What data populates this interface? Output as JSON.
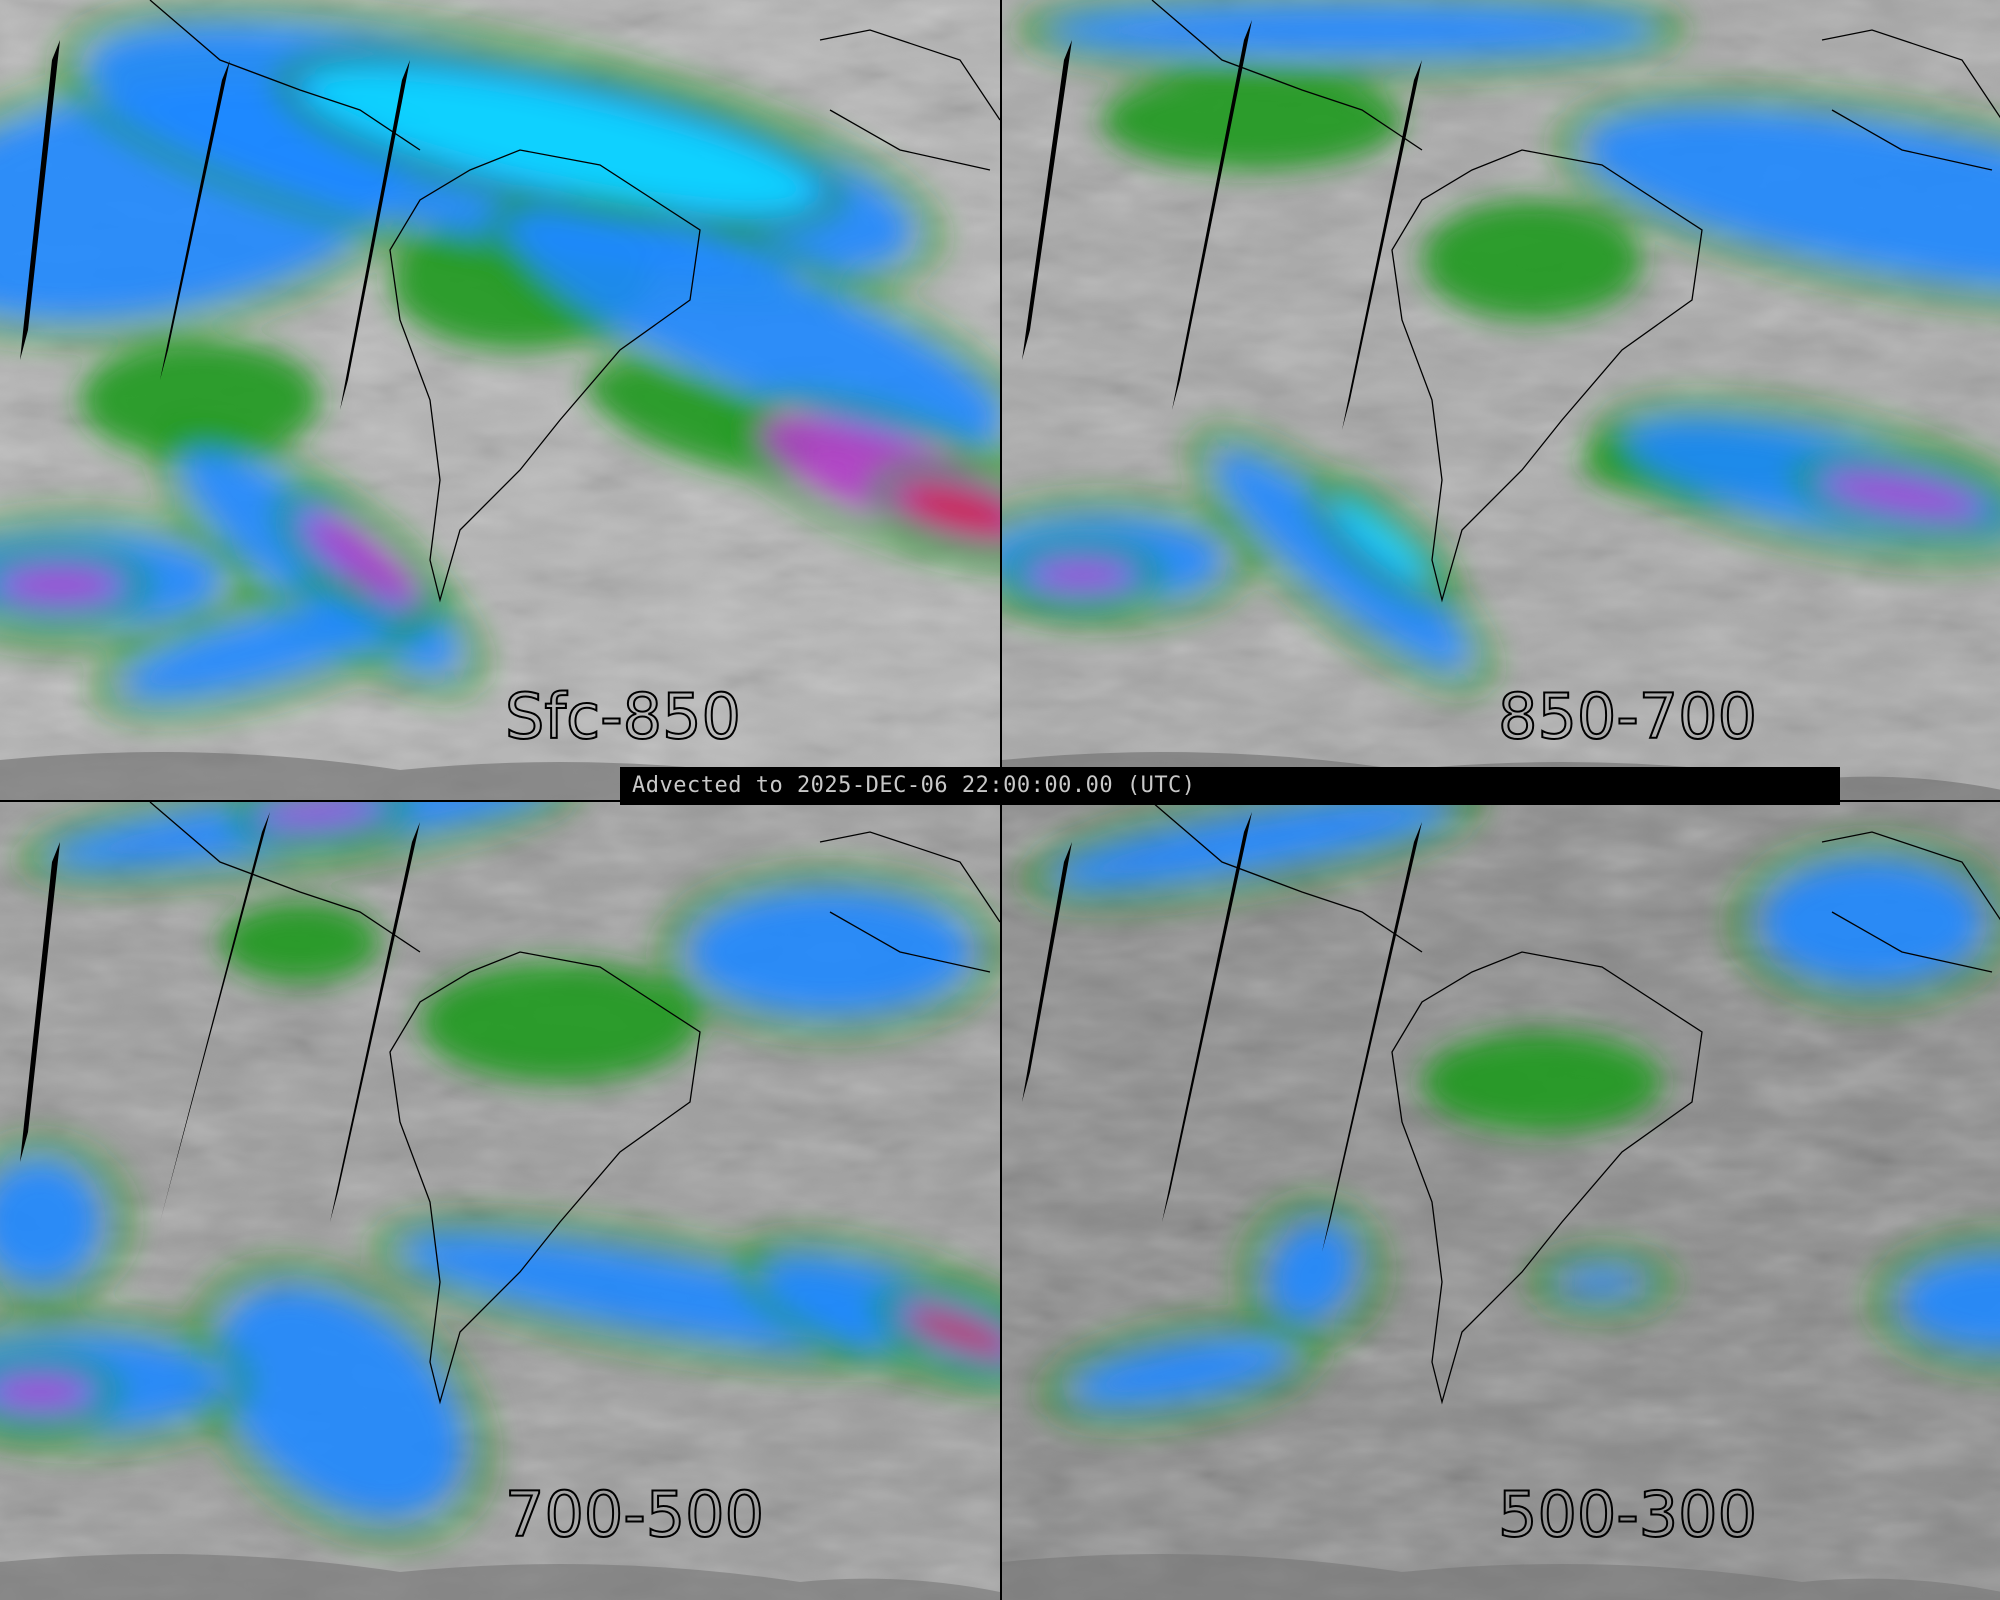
{
  "banner": {
    "text": "Advected to 2025-DEC-06 22:00:00.00 (UTC)"
  },
  "panels": [
    {
      "label": "Sfc-850"
    },
    {
      "label": "850-700"
    },
    {
      "label": "700-500"
    },
    {
      "label": "500-300"
    }
  ],
  "colors": {
    "background_gray": "#a8a8a8",
    "green": "#1f9a1f",
    "blue": "#1e88ff",
    "cyan": "#10d8ff",
    "magenta": "#b03cc8",
    "red": "#d02020",
    "coastline": "#000000",
    "data_gap": "#000000"
  }
}
